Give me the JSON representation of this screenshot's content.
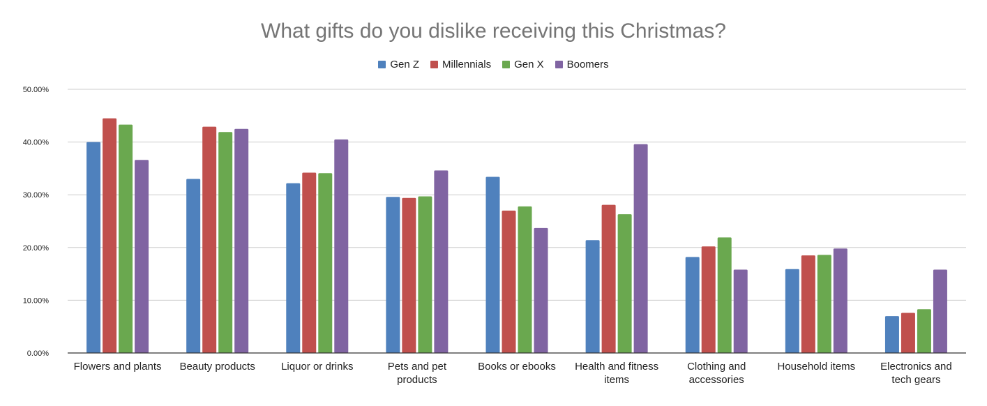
{
  "chart_data": {
    "type": "bar",
    "title": "What gifts do you dislike receiving this Christmas?",
    "xlabel": "",
    "ylabel": "",
    "ylim": [
      0,
      0.5
    ],
    "yticks": [
      "0.00%",
      "10.00%",
      "20.00%",
      "30.00%",
      "40.00%",
      "50.00%"
    ],
    "grid": true,
    "legend_placement": "top",
    "categories": [
      "Flowers and plants",
      "Beauty products",
      "Liquor or drinks",
      "Pets and pet products",
      "Books or ebooks",
      "Health and fitness items",
      "Clothing and accessories",
      "Household items",
      "Electronics and tech gears"
    ],
    "series": [
      {
        "name": "Gen Z",
        "color": "#4f81bd",
        "values": [
          0.4,
          0.33,
          0.322,
          0.296,
          0.334,
          0.214,
          0.182,
          0.159,
          0.07
        ]
      },
      {
        "name": "Millennials",
        "color": "#c0504d",
        "values": [
          0.445,
          0.429,
          0.342,
          0.294,
          0.27,
          0.281,
          0.202,
          0.185,
          0.076
        ]
      },
      {
        "name": "Gen X",
        "color": "#6aa84f",
        "values": [
          0.433,
          0.419,
          0.341,
          0.297,
          0.278,
          0.263,
          0.219,
          0.186,
          0.083
        ]
      },
      {
        "name": "Boomers",
        "color": "#8064a2",
        "values": [
          0.366,
          0.425,
          0.405,
          0.346,
          0.237,
          0.396,
          0.158,
          0.198,
          0.158
        ]
      }
    ]
  }
}
